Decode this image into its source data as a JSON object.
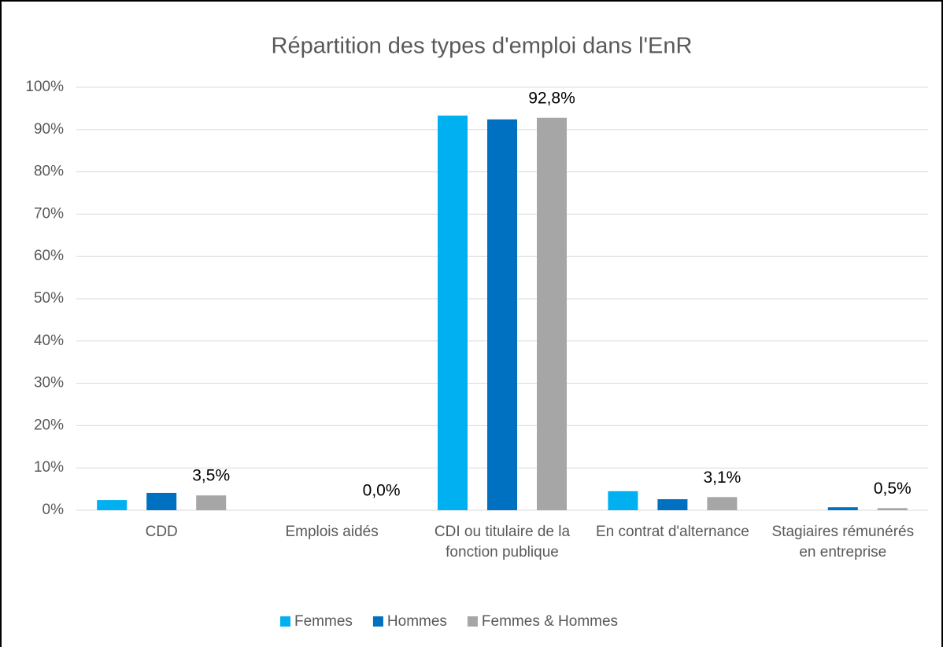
{
  "chart_data": {
    "type": "bar",
    "title": "Répartition des types d'emploi dans l'EnR",
    "categories": [
      "CDD",
      "Emplois aidés",
      "CDI ou titulaire de la fonction publique",
      "En contrat d'alternance",
      "Stagiaires rémunérés en entreprise"
    ],
    "series": [
      {
        "name": "Femmes",
        "color": "#00b0f0",
        "values": [
          2.4,
          0,
          93.3,
          4.5,
          0
        ]
      },
      {
        "name": "Hommes",
        "color": "#0070c0",
        "values": [
          4.1,
          0,
          92.4,
          2.6,
          0.7
        ]
      },
      {
        "name": "Femmes & Hommes",
        "color": "#a6a6a6",
        "values": [
          3.5,
          0,
          92.8,
          3.1,
          0.5
        ],
        "value_labels": [
          "3,5%",
          "0,0%",
          "92,8%",
          "3,1%",
          "0,5%"
        ]
      }
    ],
    "ylim": [
      0,
      100
    ],
    "yticks": [
      {
        "value": 0,
        "label": "0%"
      },
      {
        "value": 10,
        "label": "10%"
      },
      {
        "value": 20,
        "label": "20%"
      },
      {
        "value": 30,
        "label": "30%"
      },
      {
        "value": 40,
        "label": "40%"
      },
      {
        "value": 50,
        "label": "50%"
      },
      {
        "value": 60,
        "label": "60%"
      },
      {
        "value": 70,
        "label": "70%"
      },
      {
        "value": 80,
        "label": "80%"
      },
      {
        "value": 90,
        "label": "90%"
      },
      {
        "value": 100,
        "label": "100%"
      }
    ],
    "grid": true,
    "legend": "bottom"
  }
}
